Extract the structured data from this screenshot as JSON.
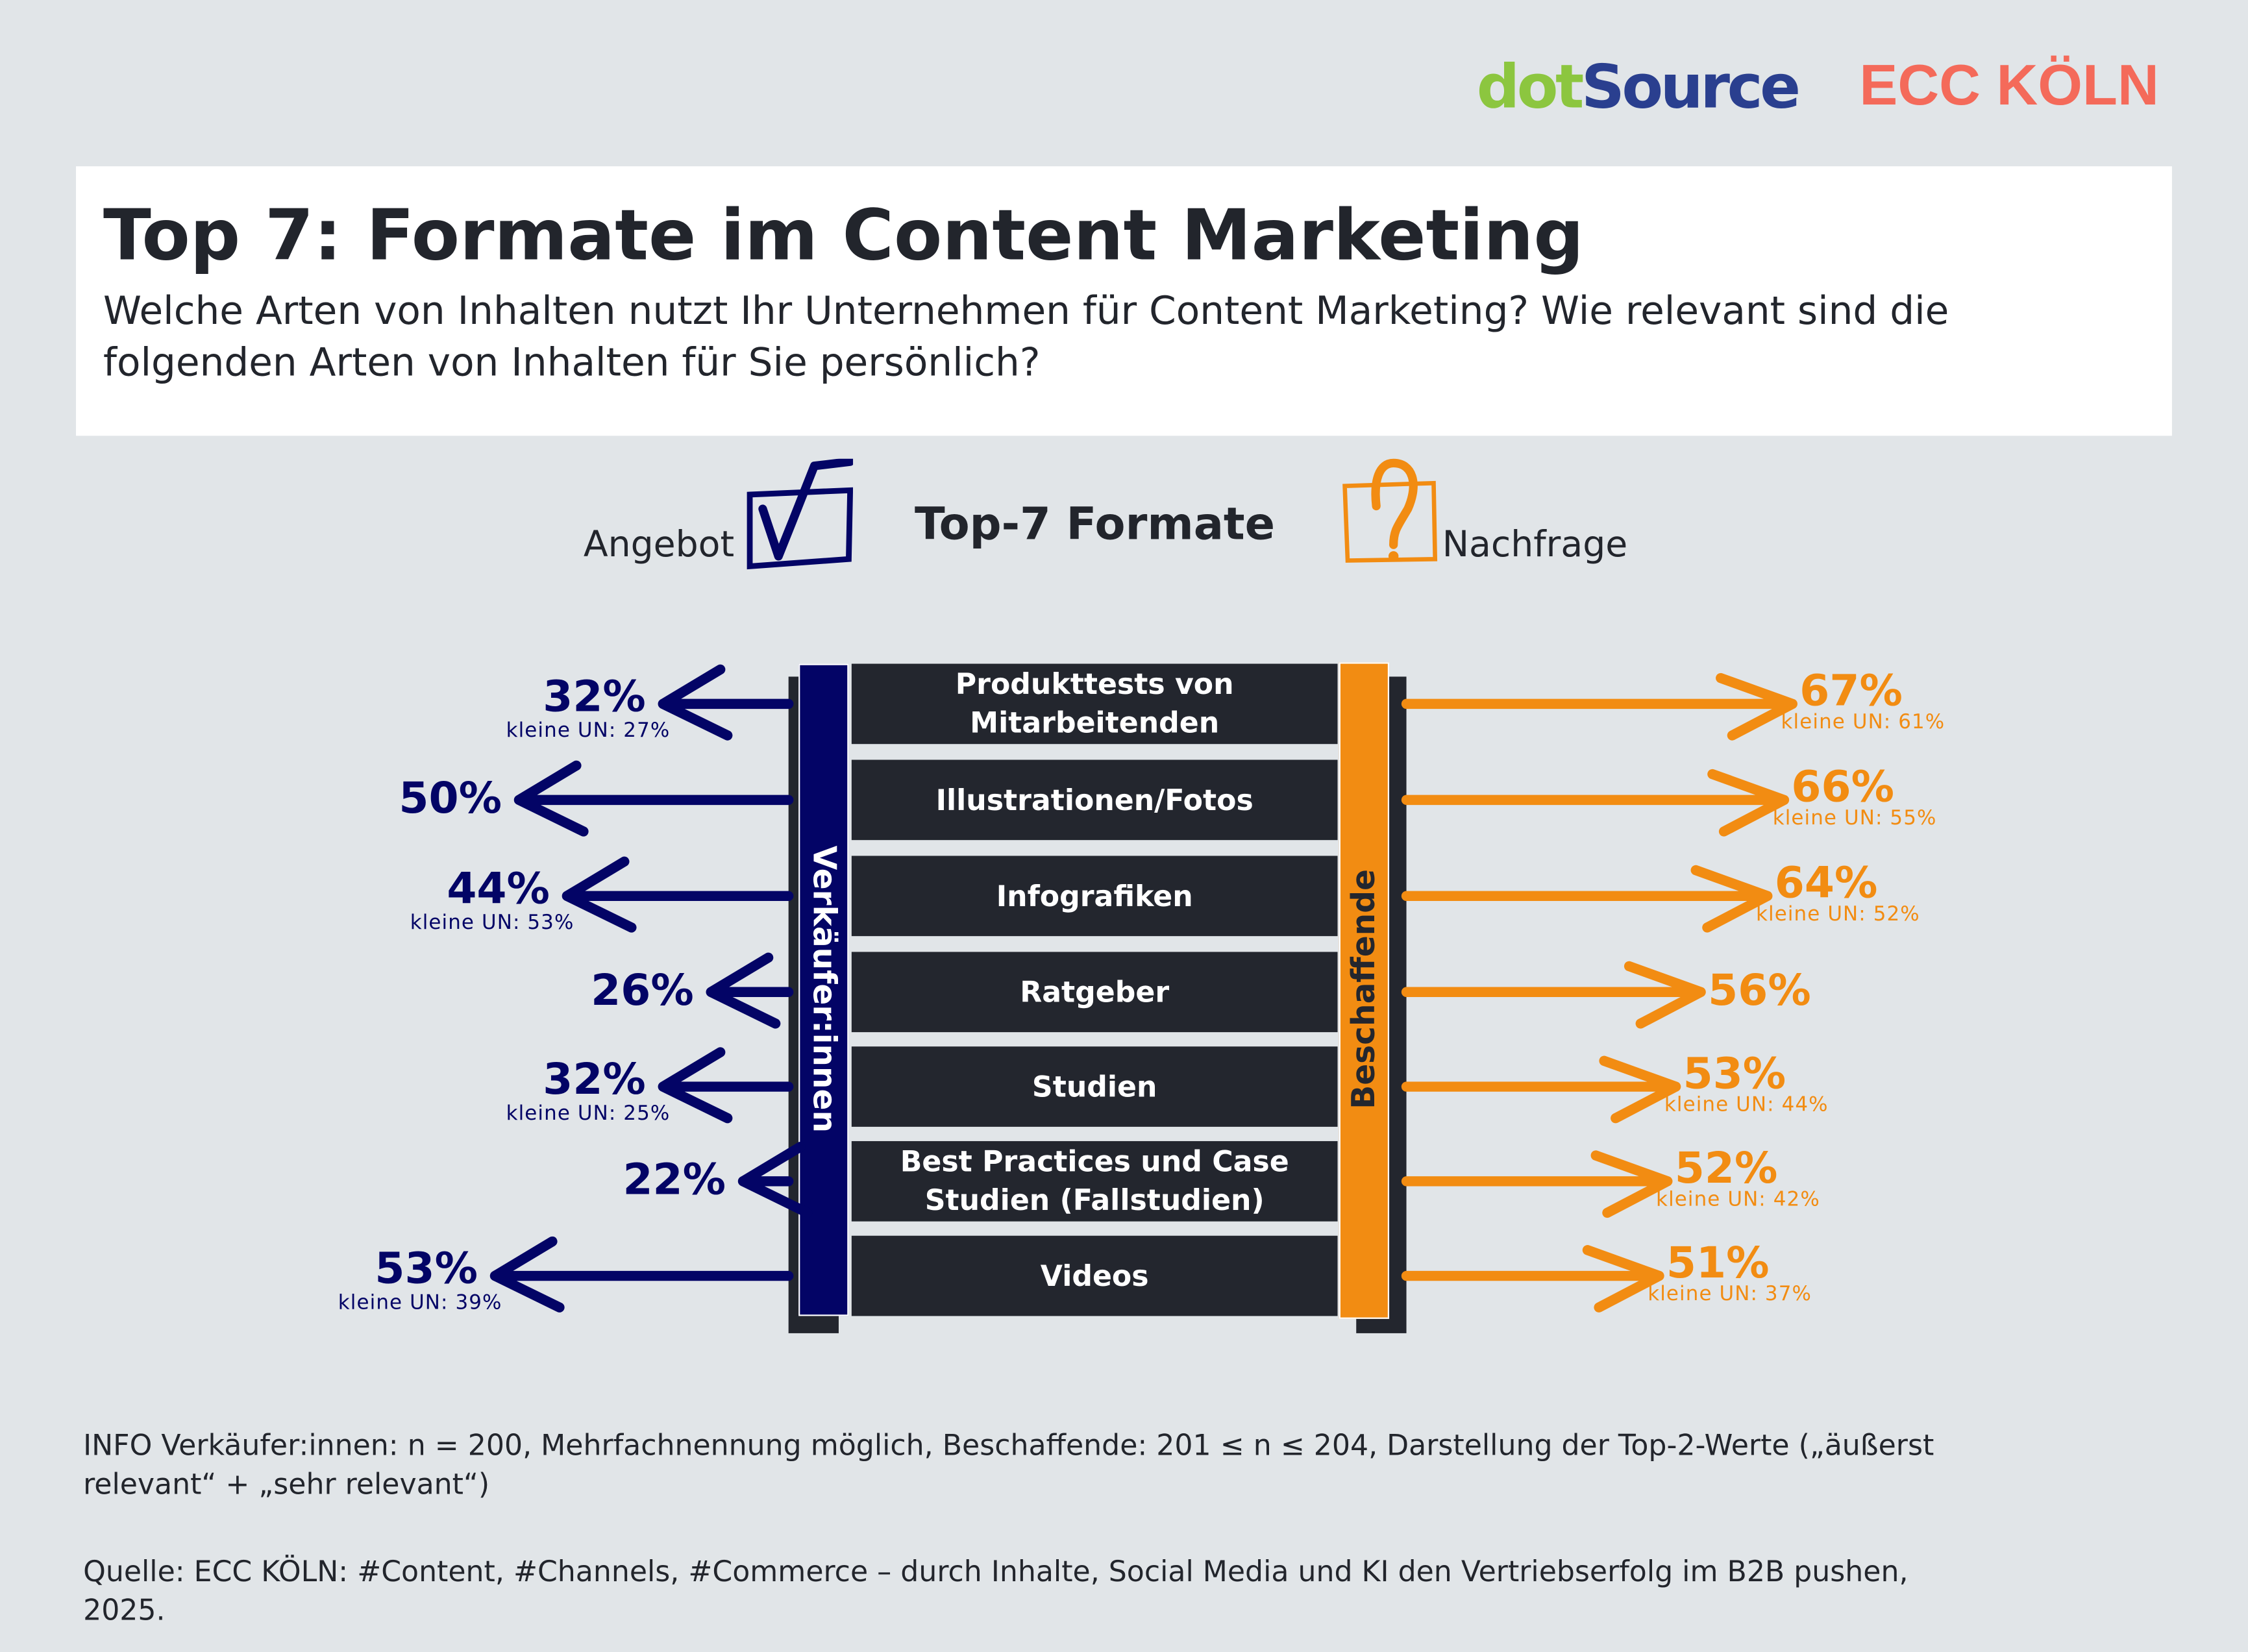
{
  "logos": {
    "dotsource_a": "dot",
    "dotsource_b": "Source",
    "ecc": "ECC KÖLN"
  },
  "header": {
    "title": "Top 7: Formate im Content Marketing",
    "subtitle": "Welche Arten von Inhalten nutzt Ihr Unternehmen für Content Marketing? Wie relevant sind die folgenden Arten von Inhalten für Sie persönlich?"
  },
  "legend": {
    "left": "Angebot",
    "center": "Top-7 Formate",
    "right": "Nachfrage",
    "left_icon": "checkbox-check-icon",
    "right_icon": "question-box-icon"
  },
  "colors": {
    "sellers": "#030466",
    "buyers": "#f28c12",
    "rows": "#23262e"
  },
  "chart_data": {
    "type": "bar",
    "title": "Top-7 Formate",
    "categories": [
      "Produkttests von Mitarbeitenden",
      "Illustrationen/Fotos",
      "Infografiken",
      "Ratgeber",
      "Studien",
      "Best Practices und Case Studien (Fallstudien)",
      "Videos"
    ],
    "series": [
      {
        "name": "Verkäufer:innen",
        "values": [
          32,
          50,
          44,
          26,
          32,
          22,
          53
        ],
        "labels": [
          "32%",
          "50%",
          "44%",
          "26%",
          "32%",
          "22%",
          "53%"
        ],
        "small_labels": [
          "kleine UN: 27%",
          "",
          "kleine UN: 53%",
          "",
          "kleine UN: 25%",
          "",
          "kleine UN: 39%"
        ]
      },
      {
        "name": "Beschaffende",
        "values": [
          67,
          66,
          64,
          56,
          53,
          52,
          51
        ],
        "labels": [
          "67%",
          "66%",
          "64%",
          "56%",
          "53%",
          "52%",
          "51%"
        ],
        "small_labels": [
          "kleine UN: 61%",
          "kleine UN: 55%",
          "kleine UN: 52%",
          "",
          "kleine UN: 44%",
          "kleine UN: 42%",
          "kleine UN: 37%"
        ]
      }
    ],
    "unit": "%"
  },
  "footer": {
    "info": "INFO Verkäufer:innen: n = 200, Mehrfachnennung möglich, Beschaffende: 201 ≤ n ≤ 204, Darstellung der Top-2-Werte („äußerst relevant“ + „sehr relevant“)",
    "source": "Quelle: ECC KÖLN: #Content, #Channels, #Commerce – durch Inhalte, Social Media und KI den Vertriebserfolg im B2B pushen, 2025."
  }
}
